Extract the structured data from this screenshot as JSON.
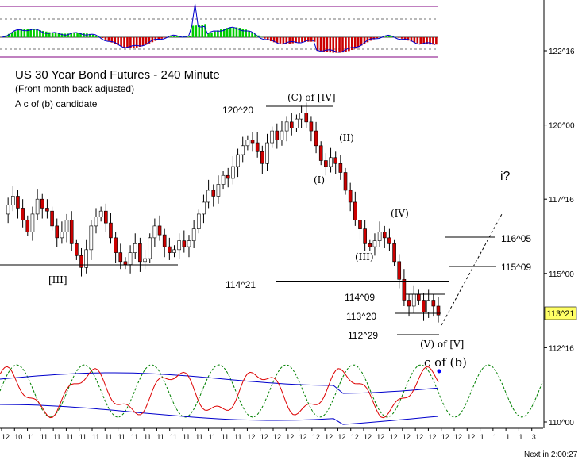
{
  "chart_data": {
    "type": "candlestick",
    "title": "US 30 Year Bond Futures - 240 Minute",
    "subtitle": "(Front month back adjusted)",
    "note": "A c of (b) candidate",
    "y_ticks": [
      "122^16",
      "120^00",
      "117^16",
      "115^00",
      "112^16",
      "110^00"
    ],
    "x_tick_labels": [
      "12",
      "10",
      "11",
      "11",
      "11",
      "11",
      "11",
      "11",
      "11",
      "11",
      "11",
      "11",
      "11",
      "11",
      "11",
      "11",
      "11",
      "11",
      "11",
      "12",
      "12",
      "12",
      "12",
      "12",
      "12",
      "12",
      "12",
      "12",
      "12",
      "12",
      "12",
      "12",
      "12",
      "12",
      "12",
      "12",
      "12",
      "1",
      "1",
      "1",
      "1",
      "3"
    ],
    "price_path": [
      117.0,
      117.3,
      117.6,
      117.2,
      116.8,
      116.4,
      117.0,
      117.5,
      117.2,
      117.1,
      116.6,
      116.2,
      116.4,
      116.8,
      116.0,
      115.6,
      115.2,
      115.8,
      116.6,
      116.9,
      117.1,
      116.7,
      116.2,
      115.7,
      115.4,
      115.3,
      115.7,
      116.0,
      115.4,
      115.5,
      116.2,
      116.6,
      116.3,
      115.9,
      115.7,
      115.8,
      116.1,
      115.9,
      116.1,
      116.5,
      117.0,
      117.4,
      117.8,
      117.6,
      118.0,
      118.3,
      118.2,
      118.6,
      119.0,
      119.3,
      119.5,
      119.4,
      119.1,
      118.7,
      119.4,
      119.8,
      119.5,
      119.8,
      120.1,
      119.9,
      120.2,
      120.4,
      120.1,
      119.8,
      119.3,
      118.8,
      118.6,
      118.9,
      118.7,
      118.4,
      117.8,
      117.4,
      116.8,
      116.5,
      116.0,
      115.9,
      116.1,
      116.4,
      116.2,
      116.0,
      115.4,
      114.8,
      114.1,
      113.9,
      114.3,
      114.1,
      113.7,
      114.1,
      113.9,
      113.6
    ]
  },
  "axis": {
    "current_price": "113^21"
  },
  "annotations": {
    "l120_20": "120^20",
    "c_of_iv": "(C) of [IV]",
    "ii": "(II)",
    "i": "(I)",
    "iv": "(IV)",
    "iii": "(III)",
    "iii_bracket": "[III]",
    "l114_21": "114^21",
    "l114_09": "114^09",
    "l113_20": "113^20",
    "l112_29": "112^29",
    "v_of_v": "(V) of [V]",
    "c_of_b": "c of (b)",
    "i_question": "i?",
    "l116_05": "116^05",
    "l115_09": "115^09"
  },
  "footer": {
    "next_bar": "Next in 2:00:27"
  }
}
